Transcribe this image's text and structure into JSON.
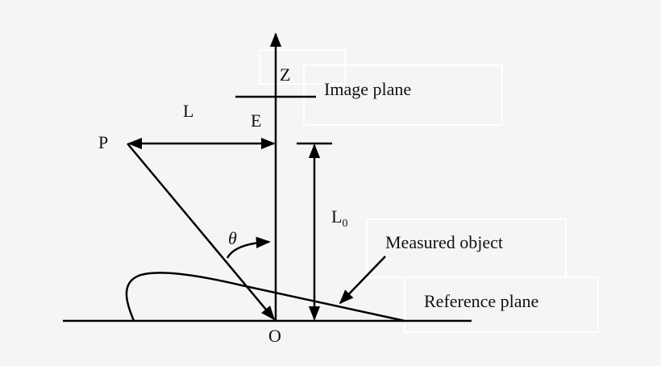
{
  "labels": {
    "z_axis": "Z",
    "image_plane": "Image plane",
    "point_e": "E",
    "distance_l": "L",
    "point_p": "P",
    "distance_l0_main": "L",
    "distance_l0_sub": "0",
    "angle_theta": "θ",
    "measured_object": "Measured object",
    "reference_plane": "Reference plane",
    "origin_o": "O"
  }
}
